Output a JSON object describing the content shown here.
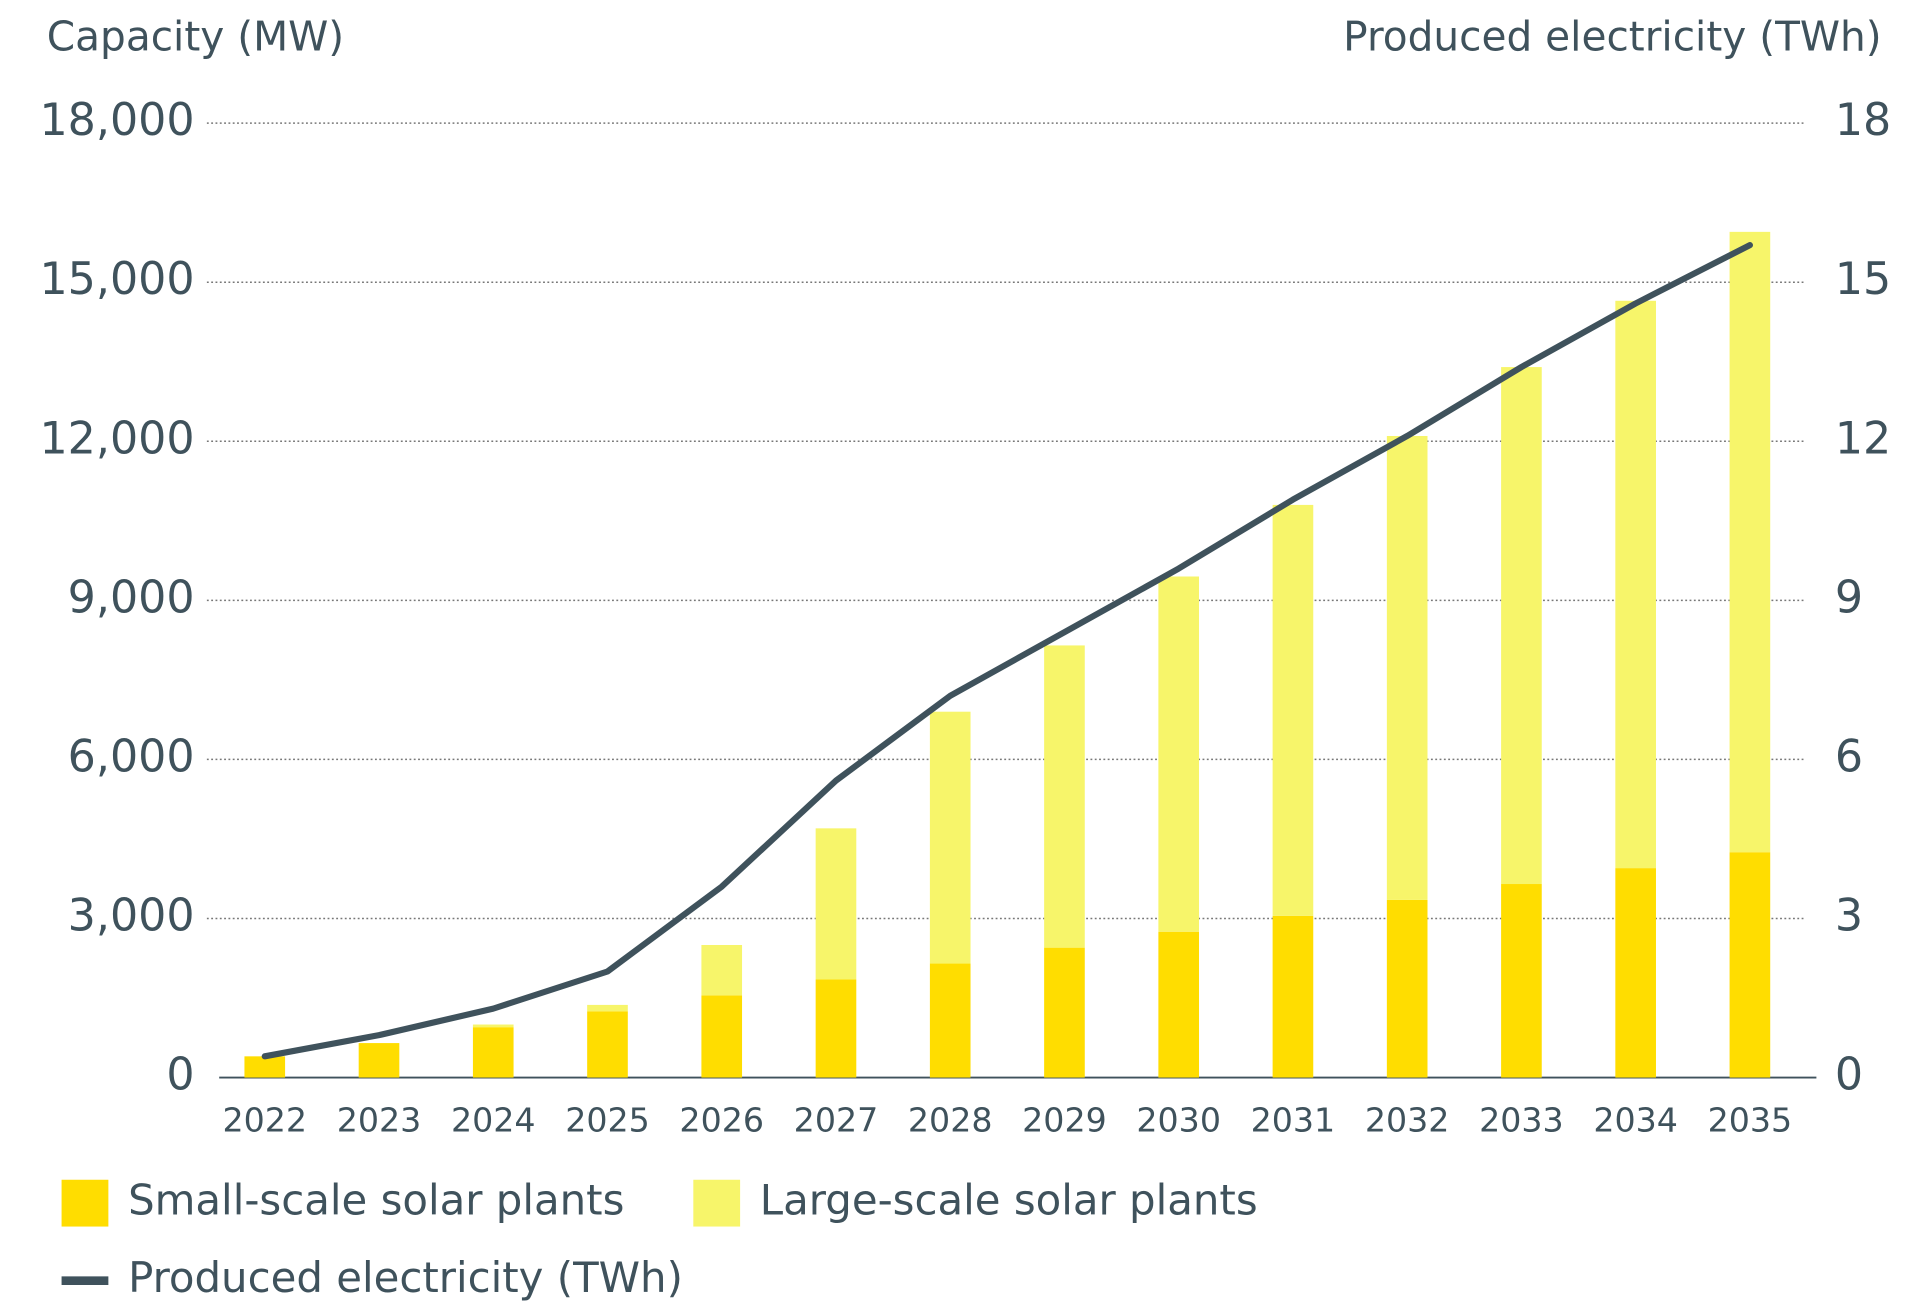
{
  "chart_data": {
    "type": "bar",
    "stacked": true,
    "y_label": "Capacity (MW)",
    "y2_label": "Produced electricity (TWh)",
    "categories": [
      "2022",
      "2023",
      "2024",
      "2025",
      "2026",
      "2027",
      "2028",
      "2029",
      "2030",
      "2031",
      "2032",
      "2033",
      "2034",
      "2035"
    ],
    "series": [
      {
        "name": "Small-scale solar plants",
        "type": "bar",
        "color": "#FFDD00",
        "values": [
          400,
          650,
          950,
          1250,
          1550,
          1850,
          2150,
          2450,
          2750,
          3050,
          3350,
          3650,
          3950,
          4250
        ]
      },
      {
        "name": "Large-scale solar plants",
        "type": "bar",
        "color": "#F7F56A",
        "values": [
          0,
          0,
          50,
          120,
          950,
          2850,
          4750,
          5700,
          6700,
          7750,
          8750,
          9750,
          10700,
          11700
        ]
      },
      {
        "name": "Produced electricity (TWh)",
        "type": "line",
        "axis": "y2",
        "color": "#3F525C",
        "values": [
          0.4,
          0.8,
          1.3,
          2.0,
          3.6,
          5.6,
          7.2,
          8.4,
          9.6,
          10.9,
          12.1,
          13.4,
          14.6,
          15.7
        ]
      }
    ],
    "ylim": [
      0,
      18000
    ],
    "yticks": [
      0,
      {
        "value": 3000,
        "label": "3,000"
      },
      {
        "value": 6000,
        "label": "6,000"
      },
      {
        "value": 9000,
        "label": "9,000"
      },
      {
        "value": 12000,
        "label": "12,000"
      },
      {
        "value": 15000,
        "label": "15,000"
      },
      {
        "value": 18000,
        "label": "18,000"
      }
    ],
    "y2lim": [
      0,
      18
    ],
    "y2ticks": [
      0,
      3,
      6,
      9,
      12,
      15,
      18
    ],
    "grid": true,
    "legend": "bottom"
  }
}
